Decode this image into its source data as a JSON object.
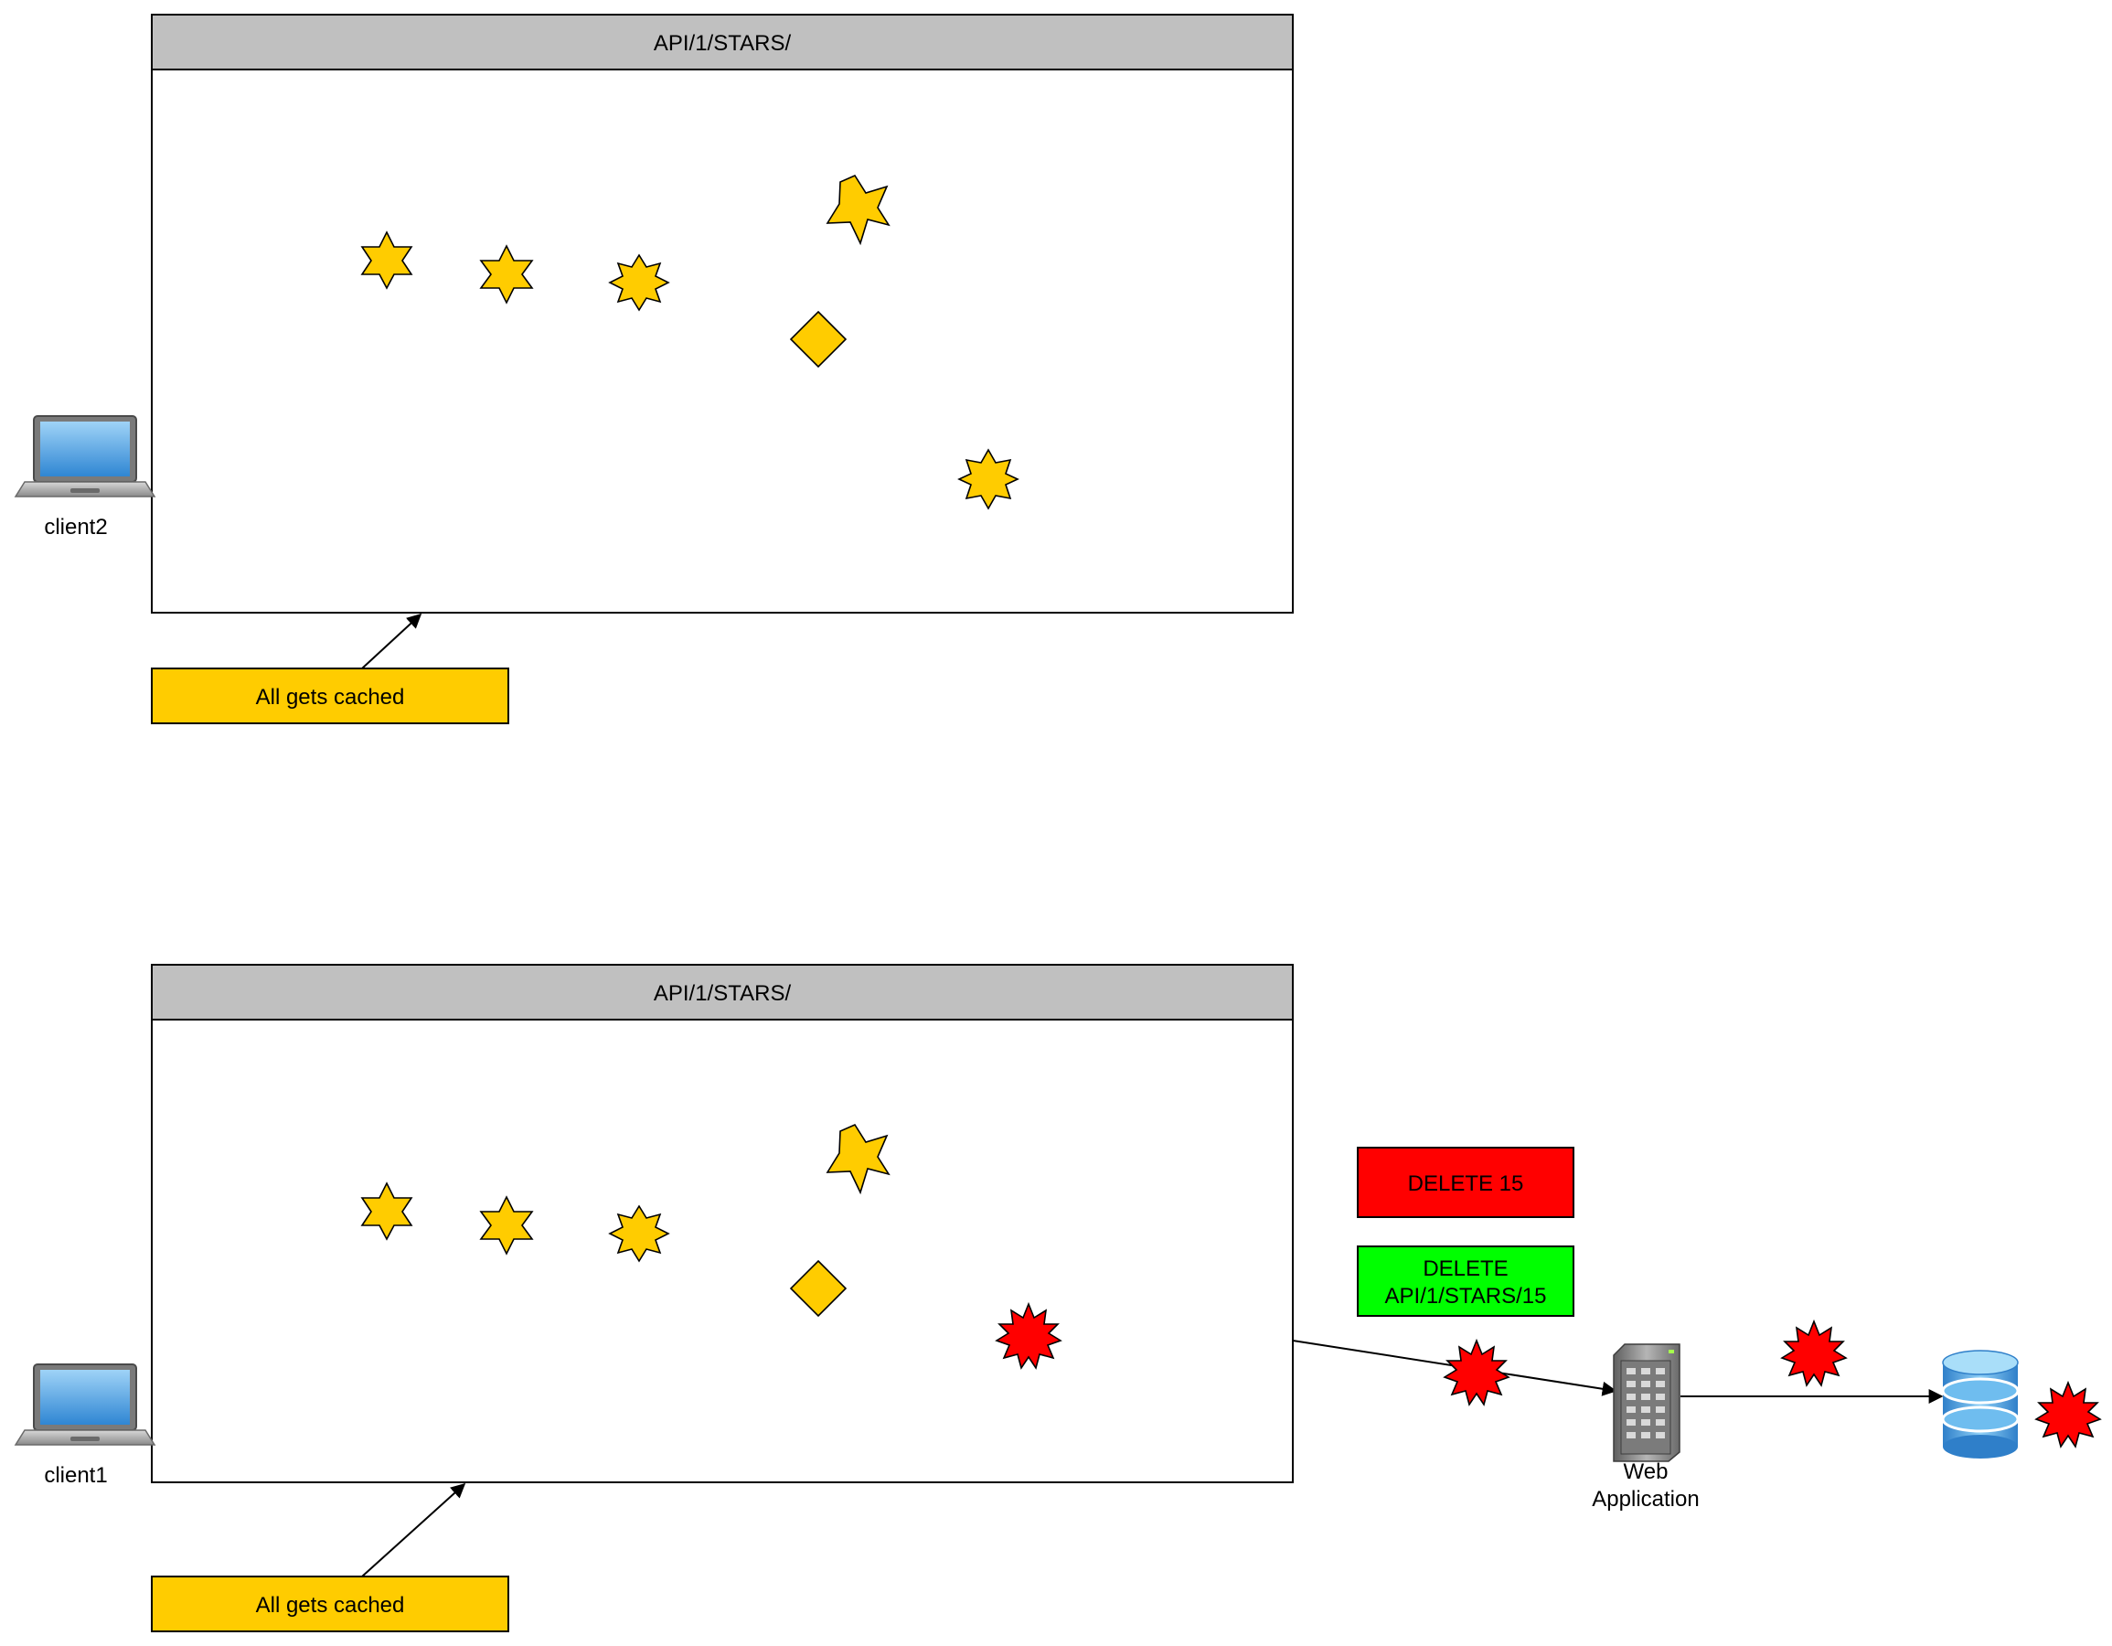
{
  "panels": [
    {
      "title": "API/1/STARS/"
    },
    {
      "title": "API/1/STARS/"
    }
  ],
  "clients": [
    {
      "label": "client2"
    },
    {
      "label": "client1"
    }
  ],
  "notes": [
    {
      "text": "All gets cached"
    },
    {
      "text": "All gets cached"
    }
  ],
  "requests": {
    "delete_short": "DELETE 15",
    "delete_full_line1": "DELETE",
    "delete_full_line2": "API/1/STARS/15"
  },
  "web_app": {
    "line1": "Web",
    "line2": "Application"
  },
  "colors": {
    "panel_header": "#c0c0c0",
    "note_fill": "#ffcc00",
    "cached_star": "#ffcc00",
    "deleted_item": "#ff0000",
    "delete_short_fill": "#ff0000",
    "delete_full_fill": "#00ff00",
    "database": "#5aa9e6"
  },
  "icons": [
    "laptop-icon",
    "server-icon",
    "database-icon",
    "star-icon",
    "diamond-icon",
    "burst-icon"
  ]
}
